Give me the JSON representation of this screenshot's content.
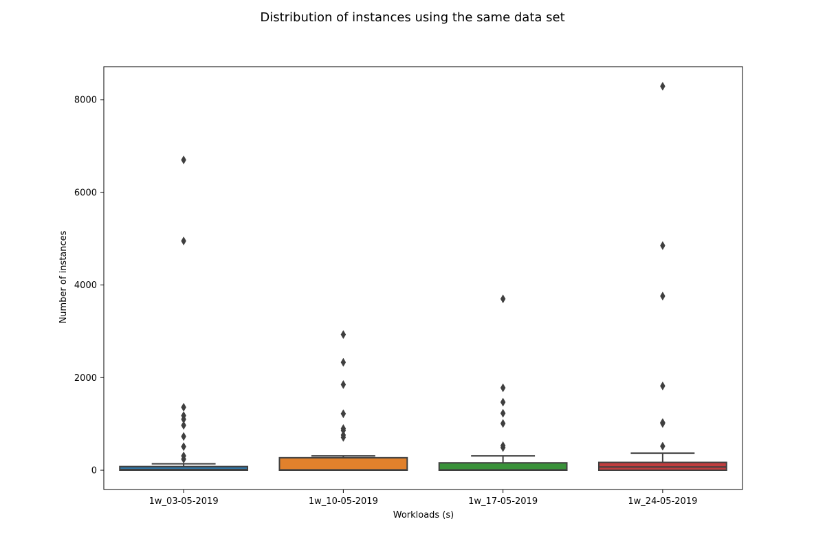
{
  "chart_data": {
    "type": "box",
    "title": "Distribution of instances using the same data set",
    "xlabel": "Workloads (s)",
    "ylabel": "Number of instances",
    "ylim": [
      -420,
      8720
    ],
    "yticks": [
      0,
      2000,
      4000,
      6000,
      8000
    ],
    "grid": false,
    "categories": [
      "1w_03-05-2019",
      "1w_10-05-2019",
      "1w_17-05-2019",
      "1w_24-05-2019"
    ],
    "series": [
      {
        "category": "1w_03-05-2019",
        "color": "#3274a1",
        "q1": 0,
        "median": 15,
        "q3": 80,
        "whisker_low": 0,
        "whisker_high": 140,
        "outliers": [
          6700,
          4950,
          1360,
          1180,
          1100,
          970,
          730,
          510,
          310,
          240
        ]
      },
      {
        "category": "1w_10-05-2019",
        "color": "#e1812c",
        "q1": 0,
        "median": 10,
        "q3": 270,
        "whisker_low": 0,
        "whisker_high": 310,
        "outliers": [
          2930,
          2330,
          1850,
          1220,
          900,
          860,
          760,
          710
        ]
      },
      {
        "category": "1w_17-05-2019",
        "color": "#3a923a",
        "q1": 0,
        "median": 10,
        "q3": 160,
        "whisker_low": 0,
        "whisker_high": 310,
        "outliers": [
          3700,
          1780,
          1470,
          1230,
          1010,
          530,
          490
        ]
      },
      {
        "category": "1w_24-05-2019",
        "color": "#c03d3e",
        "q1": 0,
        "median": 70,
        "q3": 170,
        "whisker_low": 0,
        "whisker_high": 370,
        "outliers": [
          8290,
          4850,
          3760,
          1820,
          1030,
          1010,
          520
        ]
      }
    ]
  }
}
